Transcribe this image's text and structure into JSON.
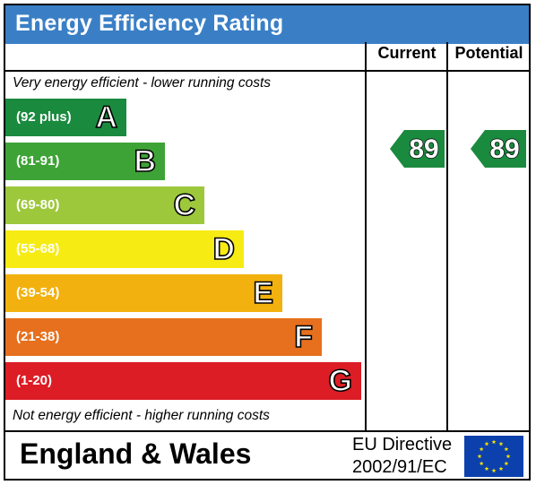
{
  "title": "Energy Efficiency Rating",
  "columns": {
    "current": "Current",
    "potential": "Potential"
  },
  "top_note": "Very energy efficient - lower running costs",
  "bottom_note": "Not energy efficient - higher running costs",
  "footer": {
    "region": "England & Wales",
    "directive_line1": "EU Directive",
    "directive_line2": "2002/91/EC"
  },
  "colors": {
    "title_bg": "#3a7fc6",
    "band_A": "#1a8a3e",
    "band_B": "#3ea337",
    "band_C": "#9dc83b",
    "band_D": "#f7eb14",
    "band_E": "#f2b10e",
    "band_F": "#e6701d",
    "band_G": "#dc1d25",
    "eu_flag": "#0c40ad",
    "eu_star": "#f7e300"
  },
  "icons": {
    "eu_flag": "eu-flag-icon"
  },
  "chart_data": {
    "type": "bar",
    "categories": [
      "A",
      "B",
      "C",
      "D",
      "E",
      "F",
      "G"
    ],
    "ranges": [
      "(92 plus)",
      "(81-91)",
      "(69-80)",
      "(55-68)",
      "(39-54)",
      "(21-38)",
      "(1-20)"
    ],
    "current": {
      "value": 89,
      "band": "B"
    },
    "potential": {
      "value": 89,
      "band": "B"
    }
  }
}
